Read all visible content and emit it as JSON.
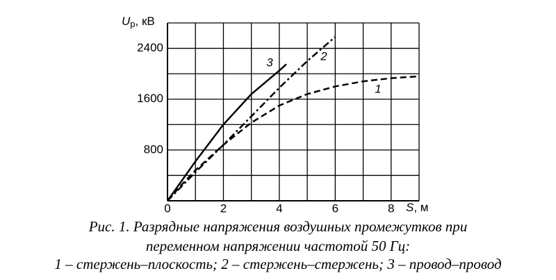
{
  "chart_data": {
    "type": "line",
    "y_label": "U",
    "y_label_sub": "р",
    "y_label_unit": ", кВ",
    "x_label": "S",
    "x_label_unit": ", м",
    "xlim": [
      0,
      9
    ],
    "ylim": [
      0,
      2800
    ],
    "xticks": [
      0,
      2,
      4,
      6,
      8
    ],
    "yticks": [
      800,
      1600,
      2400
    ],
    "x_minor_grid": [
      1,
      3,
      5,
      7,
      9
    ],
    "y_minor_grid": [
      400,
      1200,
      2000,
      2800
    ],
    "grid": true,
    "series": [
      {
        "name": "1",
        "color": "#000000",
        "style": "dashed",
        "x": [
          0,
          0.5,
          1,
          2,
          3,
          4,
          5,
          6,
          7,
          8,
          9
        ],
        "values": [
          0,
          250,
          480,
          880,
          1230,
          1500,
          1680,
          1800,
          1880,
          1930,
          1960
        ]
      },
      {
        "name": "2",
        "color": "#000000",
        "style": "dashdot",
        "x": [
          0,
          1,
          2,
          3,
          4,
          5,
          6
        ],
        "values": [
          0,
          450,
          880,
          1330,
          1780,
          2200,
          2580
        ]
      },
      {
        "name": "3",
        "color": "#000000",
        "style": "solid",
        "x": [
          0,
          1,
          2,
          3,
          4,
          4.25
        ],
        "values": [
          0,
          620,
          1200,
          1680,
          2050,
          2150
        ]
      }
    ],
    "caption": [
      "Рис. 1. Разрядные напряжения воздушных промежутков при",
      "переменном напряжении частотой 50 Гц:",
      "1 – стержень–плоскость; 2  – стержень–стержень; 3 – провод–провод"
    ]
  }
}
